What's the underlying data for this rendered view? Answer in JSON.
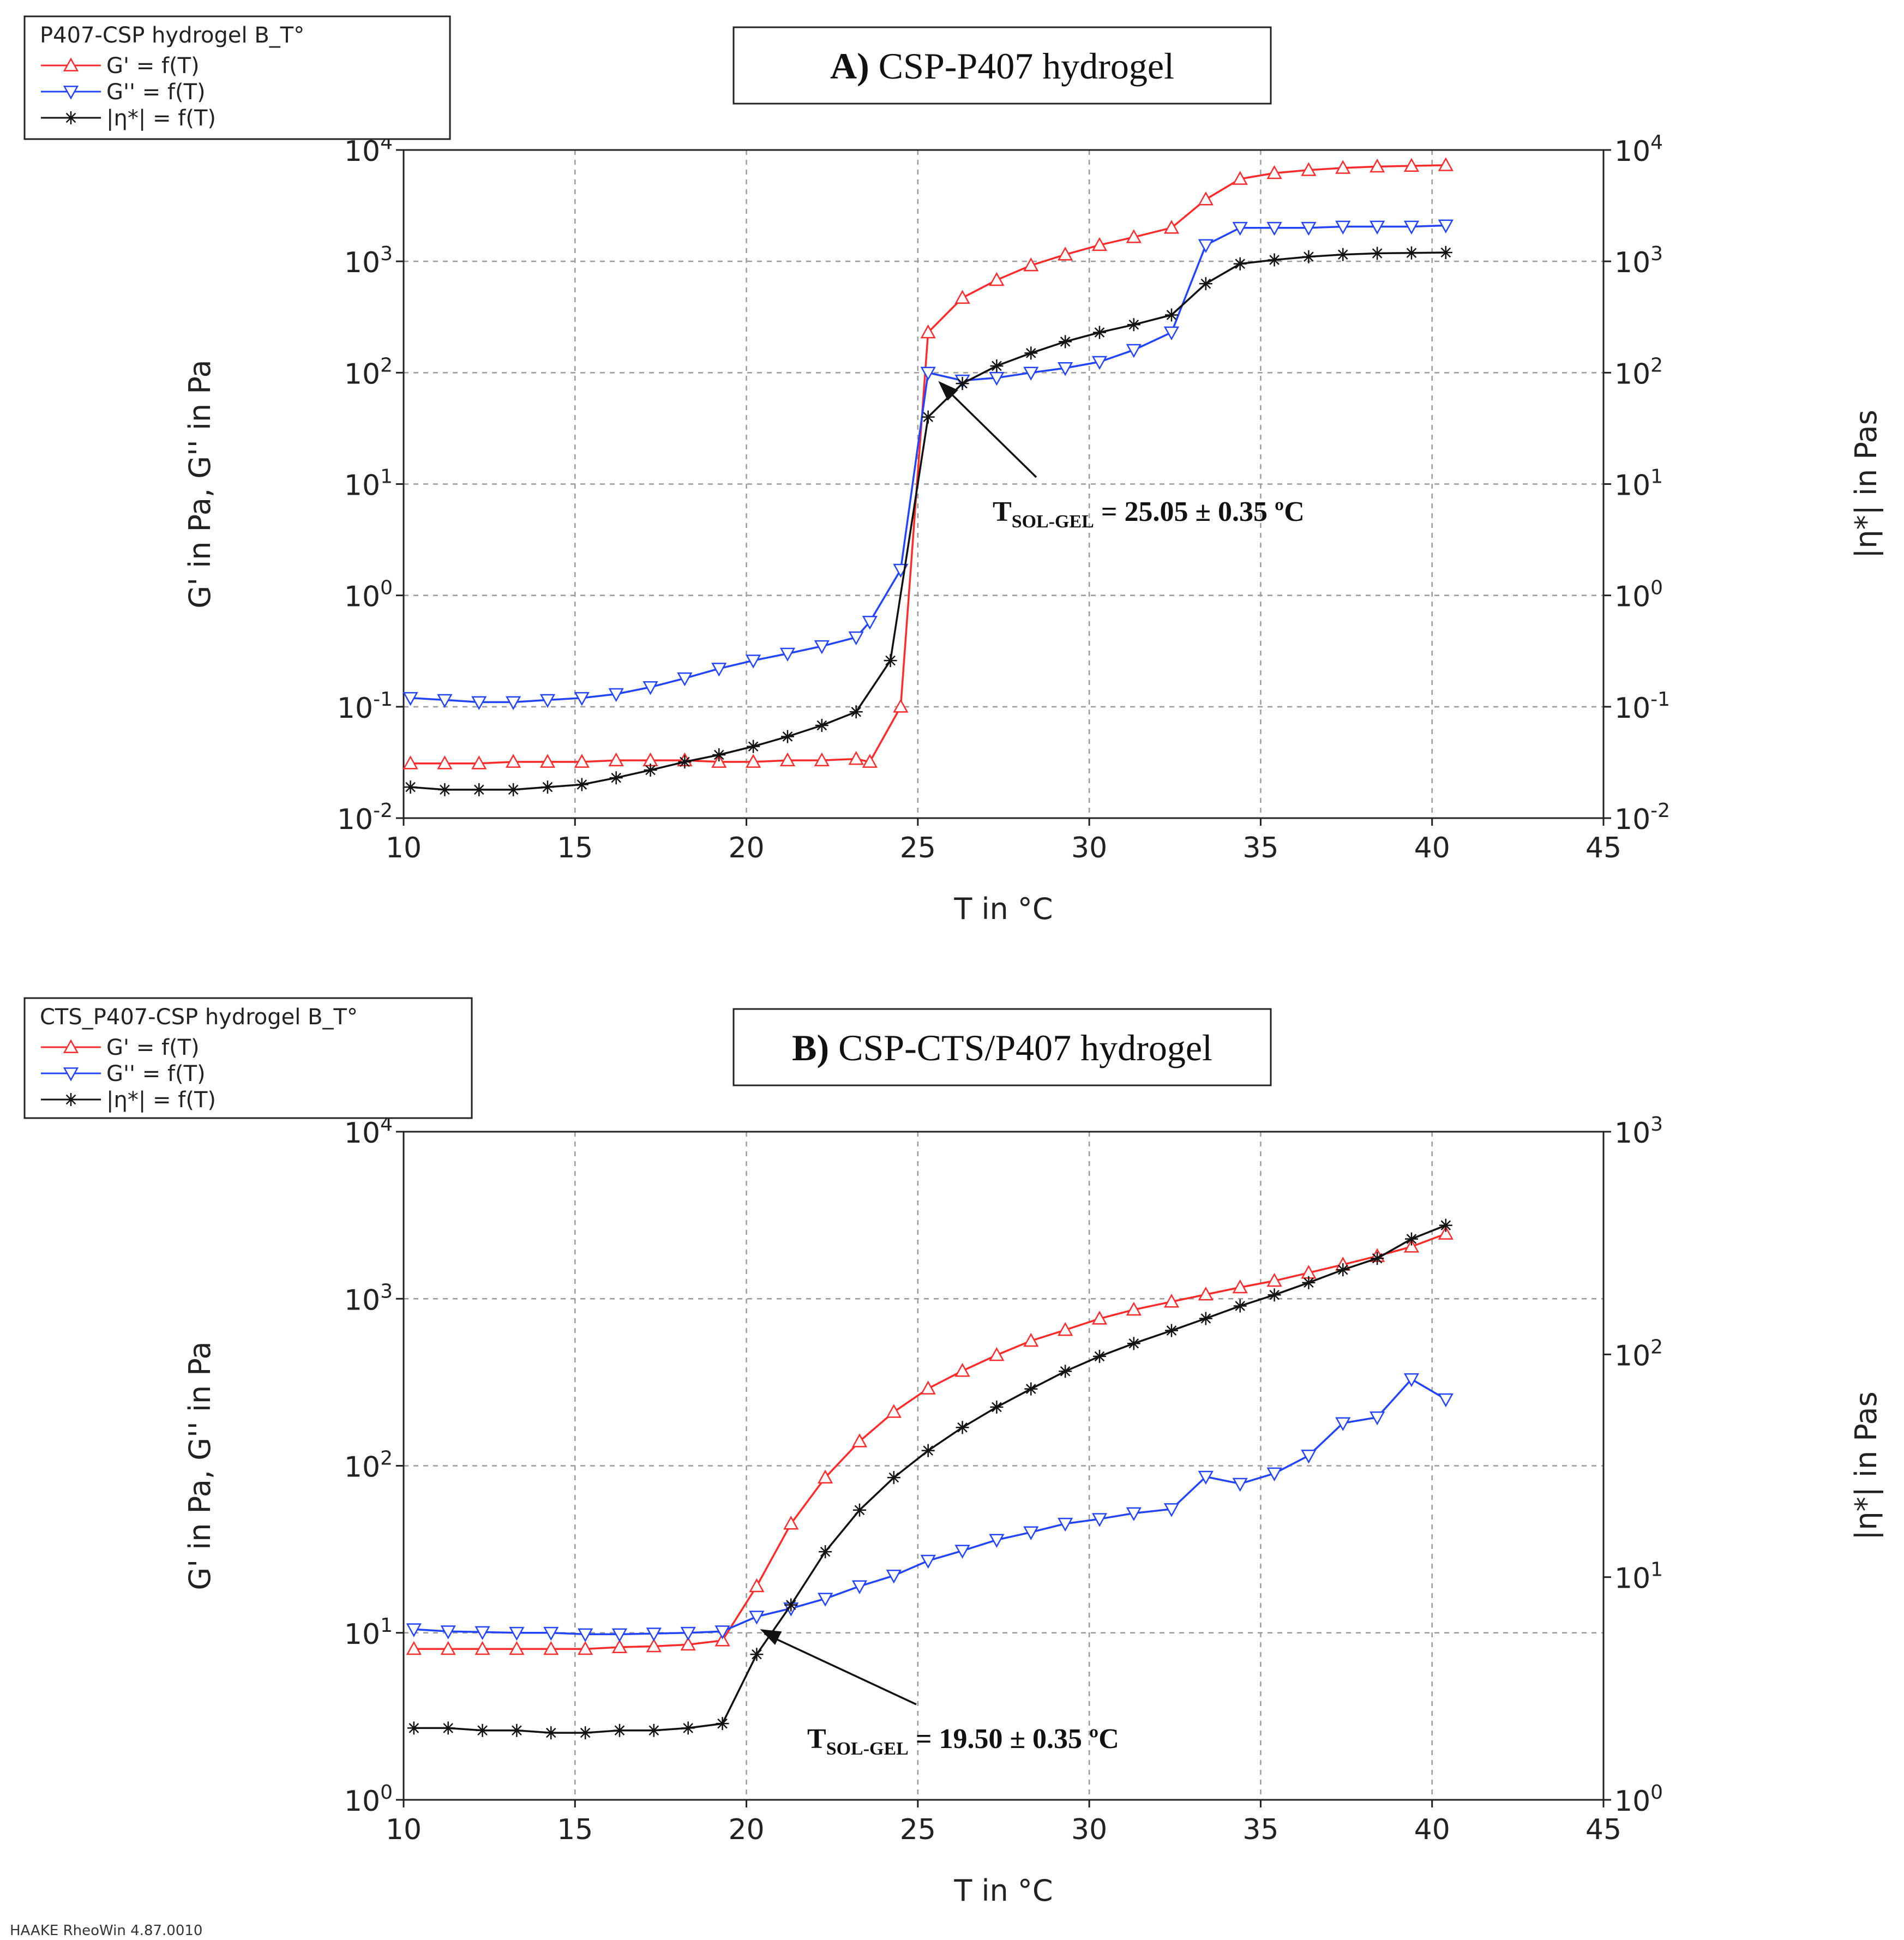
{
  "footer": "HAAKE RheoWin 4.87.0010",
  "colors": {
    "g_prime": "#ff2a2a",
    "g_double_prime": "#2244ff",
    "eta": "#111111",
    "grid": "#9a9a9a"
  },
  "chart_data": [
    {
      "type": "line",
      "panel_label": "A)",
      "title": "CSP-P407 hydrogel",
      "legend_title": "P407-CSP hydrogel B_T°",
      "legend": [
        "G' = f(T)",
        "G'' = f(T)",
        "|η*| = f(T)"
      ],
      "xlabel": "T in °C",
      "ylabel_left": "G' in Pa, G'' in Pa",
      "ylabel_right": "|η*| in Pas",
      "xlim": [
        10,
        45
      ],
      "xticks": [
        "10",
        "15",
        "20",
        "25",
        "30",
        "35",
        "40",
        "45"
      ],
      "ylim_left_exp": [
        -2,
        4
      ],
      "yticks_left": [
        {
          "base": "10",
          "exp": "-2"
        },
        {
          "base": "10",
          "exp": "-1"
        },
        {
          "base": "10",
          "exp": "0"
        },
        {
          "base": "10",
          "exp": "1"
        },
        {
          "base": "10",
          "exp": "2"
        },
        {
          "base": "10",
          "exp": "3"
        },
        {
          "base": "10",
          "exp": "4"
        }
      ],
      "ylim_right_exp": [
        -2,
        4
      ],
      "yticks_right": [
        {
          "base": "10",
          "exp": "-2"
        },
        {
          "base": "10",
          "exp": "-1"
        },
        {
          "base": "10",
          "exp": "0"
        },
        {
          "base": "10",
          "exp": "1"
        },
        {
          "base": "10",
          "exp": "2"
        },
        {
          "base": "10",
          "exp": "3"
        },
        {
          "base": "10",
          "exp": "4"
        }
      ],
      "annotation": {
        "prefix": "T",
        "sub": "SOL-GEL",
        "text": " = 25.05 ± 0.35 ºC",
        "point": [
          25.5,
          90
        ]
      },
      "series": [
        {
          "name": "G' = f(T)",
          "axis": "left",
          "marker": "triangle-up",
          "x": [
            10.2,
            11.2,
            12.2,
            13.2,
            14.2,
            15.2,
            16.2,
            17.2,
            18.2,
            19.2,
            20.2,
            21.2,
            22.2,
            23.2,
            23.6,
            24.5,
            25.3,
            26.3,
            27.3,
            28.3,
            29.3,
            30.3,
            31.3,
            32.4,
            33.4,
            34.4,
            35.4,
            36.4,
            37.4,
            38.4,
            39.4,
            40.4
          ],
          "values": [
            0.031,
            0.031,
            0.031,
            0.032,
            0.032,
            0.032,
            0.033,
            0.033,
            0.033,
            0.032,
            0.032,
            0.033,
            0.033,
            0.034,
            0.032,
            0.1,
            230,
            470,
            680,
            920,
            1150,
            1400,
            1650,
            2000,
            3600,
            5500,
            6200,
            6600,
            6900,
            7100,
            7200,
            7300
          ]
        },
        {
          "name": "G'' = f(T)",
          "axis": "left",
          "marker": "triangle-down",
          "x": [
            10.2,
            11.2,
            12.2,
            13.2,
            14.2,
            15.2,
            16.2,
            17.2,
            18.2,
            19.2,
            20.2,
            21.2,
            22.2,
            23.2,
            23.6,
            24.5,
            25.3,
            26.3,
            27.3,
            28.3,
            29.3,
            30.3,
            31.3,
            32.4,
            33.4,
            34.4,
            35.4,
            36.4,
            37.4,
            38.4,
            39.4,
            40.4
          ],
          "values": [
            0.12,
            0.115,
            0.11,
            0.11,
            0.115,
            0.12,
            0.13,
            0.15,
            0.18,
            0.22,
            0.26,
            0.3,
            0.35,
            0.42,
            0.58,
            1.7,
            100,
            85,
            90,
            100,
            110,
            125,
            160,
            230,
            1400,
            2000,
            2000,
            2000,
            2050,
            2050,
            2050,
            2100
          ]
        },
        {
          "name": "|η*| = f(T)",
          "axis": "right",
          "marker": "asterisk",
          "x": [
            10.2,
            11.2,
            12.2,
            13.2,
            14.2,
            15.2,
            16.2,
            17.2,
            18.2,
            19.2,
            20.2,
            21.2,
            22.2,
            23.2,
            24.2,
            25.3,
            26.3,
            27.3,
            28.3,
            29.3,
            30.3,
            31.3,
            32.4,
            33.4,
            34.4,
            35.4,
            36.4,
            37.4,
            38.4,
            39.4,
            40.4
          ],
          "values": [
            0.019,
            0.018,
            0.018,
            0.018,
            0.019,
            0.02,
            0.023,
            0.027,
            0.032,
            0.037,
            0.044,
            0.054,
            0.068,
            0.09,
            0.26,
            40,
            80,
            115,
            150,
            190,
            230,
            270,
            330,
            630,
            950,
            1030,
            1100,
            1150,
            1180,
            1190,
            1200
          ]
        }
      ]
    },
    {
      "type": "line",
      "panel_label": "B)",
      "title": "CSP-CTS/P407 hydrogel",
      "legend_title": "CTS_P407-CSP hydrogel B_T°",
      "legend": [
        "G' = f(T)",
        "G'' = f(T)",
        "|η*| = f(T)"
      ],
      "xlabel": "T in °C",
      "ylabel_left": "G' in Pa, G'' in Pa",
      "ylabel_right": "|η*| in Pas",
      "xlim": [
        10,
        45
      ],
      "xticks": [
        "10",
        "15",
        "20",
        "25",
        "30",
        "35",
        "40",
        "45"
      ],
      "ylim_left_exp": [
        0,
        4
      ],
      "yticks_left": [
        {
          "base": "10",
          "exp": "0"
        },
        {
          "base": "10",
          "exp": "1"
        },
        {
          "base": "10",
          "exp": "2"
        },
        {
          "base": "10",
          "exp": "3"
        },
        {
          "base": "10",
          "exp": "4"
        }
      ],
      "ylim_right_exp": [
        0,
        3
      ],
      "yticks_right": [
        {
          "base": "10",
          "exp": "0"
        },
        {
          "base": "10",
          "exp": "1"
        },
        {
          "base": "10",
          "exp": "2"
        },
        {
          "base": "10",
          "exp": "3"
        }
      ],
      "annotation": {
        "prefix": "T",
        "sub": "SOL-GEL",
        "text": " = 19.50 ± 0.35 ºC",
        "point": [
          20.3,
          11
        ]
      },
      "series": [
        {
          "name": "G' = f(T)",
          "axis": "left",
          "marker": "triangle-up",
          "x": [
            10.3,
            11.3,
            12.3,
            13.3,
            14.3,
            15.3,
            16.3,
            17.3,
            18.3,
            19.3,
            20.3,
            21.3,
            22.3,
            23.3,
            24.3,
            25.3,
            26.3,
            27.3,
            28.3,
            29.3,
            30.3,
            31.3,
            32.4,
            33.4,
            34.4,
            35.4,
            36.4,
            37.4,
            38.4,
            39.4,
            40.4
          ],
          "values": [
            8,
            8,
            8,
            8,
            8,
            8,
            8.2,
            8.3,
            8.5,
            9,
            19,
            45,
            85,
            140,
            210,
            290,
            370,
            460,
            560,
            650,
            760,
            860,
            960,
            1060,
            1170,
            1280,
            1430,
            1600,
            1800,
            2050,
            2450
          ]
        },
        {
          "name": "G'' = f(T)",
          "axis": "left",
          "marker": "triangle-down",
          "x": [
            10.3,
            11.3,
            12.3,
            13.3,
            14.3,
            15.3,
            16.3,
            17.3,
            18.3,
            19.3,
            20.3,
            21.3,
            22.3,
            23.3,
            24.3,
            25.3,
            26.3,
            27.3,
            28.3,
            29.3,
            30.3,
            31.3,
            32.4,
            33.4,
            34.4,
            35.4,
            36.4,
            37.4,
            38.4,
            39.4,
            40.4
          ],
          "values": [
            10.5,
            10.2,
            10.1,
            10,
            10,
            9.8,
            9.8,
            9.9,
            10,
            10.2,
            12.5,
            14,
            16,
            19,
            22,
            27,
            31,
            36,
            40,
            45,
            48,
            52,
            55,
            86,
            78,
            90,
            115,
            180,
            195,
            330,
            250
          ]
        },
        {
          "name": "|η*| = f(T)",
          "axis": "right",
          "marker": "asterisk",
          "x": [
            10.3,
            11.3,
            12.3,
            13.3,
            14.3,
            15.3,
            16.3,
            17.3,
            18.3,
            19.3,
            20.3,
            21.3,
            22.3,
            23.3,
            24.3,
            25.3,
            26.3,
            27.3,
            28.3,
            29.3,
            30.3,
            31.3,
            32.4,
            33.4,
            34.4,
            35.4,
            36.4,
            37.4,
            38.4,
            39.4,
            40.4
          ],
          "values": [
            2.1,
            2.1,
            2.05,
            2.05,
            2.0,
            2.0,
            2.05,
            2.05,
            2.1,
            2.2,
            4.5,
            7.5,
            13,
            20,
            28,
            37,
            47,
            58,
            70,
            84,
            98,
            112,
            128,
            145,
            165,
            185,
            210,
            240,
            270,
            330,
            380
          ]
        }
      ]
    }
  ]
}
